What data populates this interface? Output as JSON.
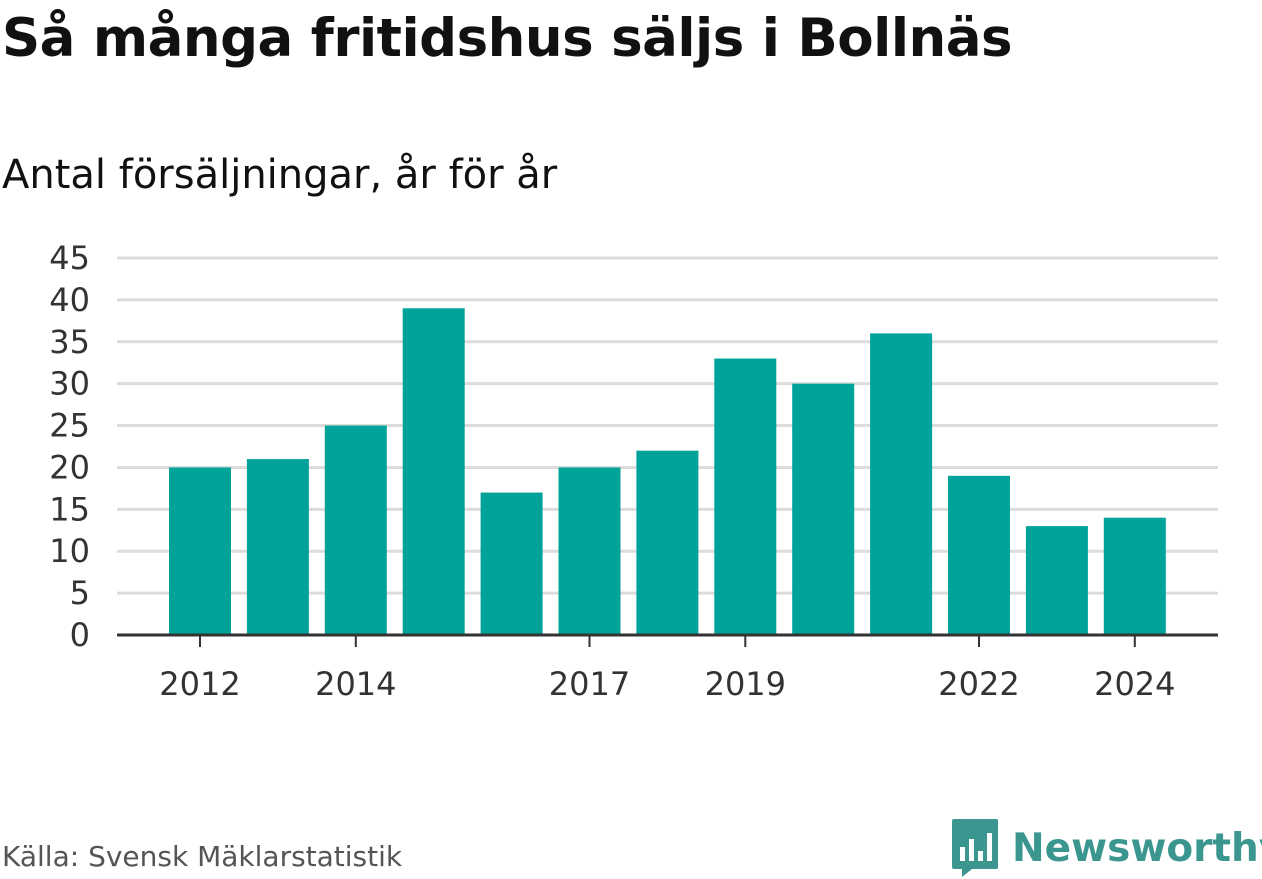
{
  "header": {
    "title": "Så många fritidshus säljs i Bollnäs",
    "subtitle": "Antal försäljningar, år för år"
  },
  "footer": {
    "source": "Källa: Svensk Mäklarstatistik",
    "brand": "Newsworthy"
  },
  "colors": {
    "bar": "#00a39a",
    "grid": "#dcdcdc",
    "axis": "#333333",
    "brand": "#3b9690"
  },
  "icons": {
    "brand_logo": "bar-chart-speech-bubble-icon"
  },
  "chart_data": {
    "type": "bar",
    "title": "Så många fritidshus säljs i Bollnäs",
    "subtitle": "Antal försäljningar, år för år",
    "categories": [
      "2012",
      "2013",
      "2014",
      "2015",
      "2016",
      "2017",
      "2018",
      "2019",
      "2020",
      "2021",
      "2022",
      "2023",
      "2024"
    ],
    "values": [
      20,
      21,
      25,
      39,
      17,
      20,
      22,
      33,
      30,
      36,
      19,
      13,
      14
    ],
    "x_tick_labels": [
      "2012",
      "2014",
      "2017",
      "2019",
      "2022",
      "2024"
    ],
    "y_ticks": [
      0,
      5,
      10,
      15,
      20,
      25,
      30,
      35,
      40,
      45
    ],
    "ylim": [
      0,
      45
    ],
    "grid": true,
    "legend": "none"
  }
}
